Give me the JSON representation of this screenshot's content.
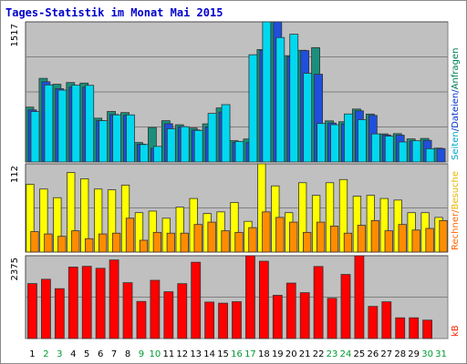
{
  "title": "Tages-Statistik im Monat Mai 2015",
  "chart_data": {
    "type": "bar",
    "title": "Tages-Statistik im Monat Mai 2015",
    "categories": [
      "1",
      "2",
      "3",
      "4",
      "5",
      "6",
      "7",
      "8",
      "9",
      "10",
      "11",
      "12",
      "13",
      "14",
      "15",
      "16",
      "17",
      "18",
      "19",
      "20",
      "21",
      "22",
      "23",
      "24",
      "25",
      "26",
      "27",
      "28",
      "29",
      "30",
      "31"
    ],
    "weekend_days": [
      "2",
      "3",
      "9",
      "10",
      "16",
      "17",
      "23",
      "24",
      "30",
      "31"
    ],
    "panels": [
      {
        "name": "top",
        "ymax_label": "1517",
        "ylim": [
          0,
          1517
        ],
        "right_legend": [
          {
            "text": "Seiten",
            "color": "#00a6c8"
          },
          {
            "text": "/",
            "color": "#0033cc"
          },
          {
            "text": "Dateien",
            "color": "#0033cc"
          },
          {
            "text": "/",
            "color": "#0033cc"
          },
          {
            "text": "Anfragen",
            "color": "#007a55"
          }
        ],
        "series": [
          {
            "name": "Anfragen",
            "color": "#1b8f7c",
            "values": [
              594,
              905,
              842,
              860,
              854,
              474,
              547,
              535,
              211,
              374,
              447,
              403,
              368,
              413,
              585,
              231,
              249,
              1217,
              1517,
              1151,
              1209,
              1238,
              445,
              436,
              573,
              519,
              304,
              307,
              250,
              255,
              150
            ]
          },
          {
            "name": "Dateien",
            "color": "#1f4fdc",
            "values": [
              564,
              868,
              793,
              810,
              810,
              448,
              514,
              505,
              193,
              149,
              414,
              382,
              347,
              380,
              541,
              213,
              210,
              1211,
              1517,
              1139,
              1206,
              950,
              422,
              413,
              554,
              504,
              293,
              290,
              228,
              234,
              145
            ]
          },
          {
            "name": "Seiten",
            "color": "#00d8f0",
            "values": [
              546,
              834,
              778,
              832,
              830,
              447,
              510,
              510,
              189,
              169,
              360,
              382,
              342,
              526,
              621,
              223,
              1161,
              1517,
              1347,
              1383,
              960,
              417,
              404,
              520,
              458,
              304,
              280,
              217,
              230,
              144,
              0
            ]
          }
        ]
      },
      {
        "name": "middle",
        "ymax_label": "112",
        "ylim": [
          0,
          112
        ],
        "right_legend": [
          {
            "text": "Rechner",
            "color": "#ff6600"
          },
          {
            "text": "/",
            "color": "#ff6600"
          },
          {
            "text": "Besuche",
            "color": "#e6b800"
          }
        ],
        "series": [
          {
            "name": "Besuche",
            "color": "#ffff00",
            "values": [
              86,
              80,
              69,
              101,
              93,
              80,
              79,
              85,
              50,
              52,
              43,
              57,
              68,
              49,
              51,
              63,
              39,
              112,
              84,
              50,
              88,
              72,
              88,
              92,
              71,
              72,
              68,
              66,
              50,
              50,
              44
            ]
          },
          {
            "name": "Rechner",
            "color": "#ff8c00",
            "values": [
              26,
              23,
              20,
              27,
              17,
              23,
              24,
              43,
              15,
              25,
              24,
              24,
              35,
              38,
              27,
              25,
              31,
              51,
              44,
              38,
              25,
              38,
              33,
              24,
              34,
              40,
              27,
              35,
              28,
              30,
              40
            ]
          }
        ]
      },
      {
        "name": "bottom",
        "ymax_label": "2375",
        "ylim": [
          0,
          2375
        ],
        "right_legend": [
          {
            "text": "kB",
            "color": "#ff2200"
          }
        ],
        "series": [
          {
            "name": "kB",
            "color": "#ff0000",
            "values": [
              1576,
              1700,
              1430,
              2050,
              2071,
              2015,
              2254,
              1602,
              1064,
              1670,
              1343,
              1574,
              2188,
              1046,
              1014,
              1057,
              2375,
              2218,
              1240,
              1590,
              1315,
              2066,
              1155,
              1838,
              2375,
              922,
              1054,
              594,
              595,
              528,
              0
            ]
          }
        ]
      }
    ]
  }
}
